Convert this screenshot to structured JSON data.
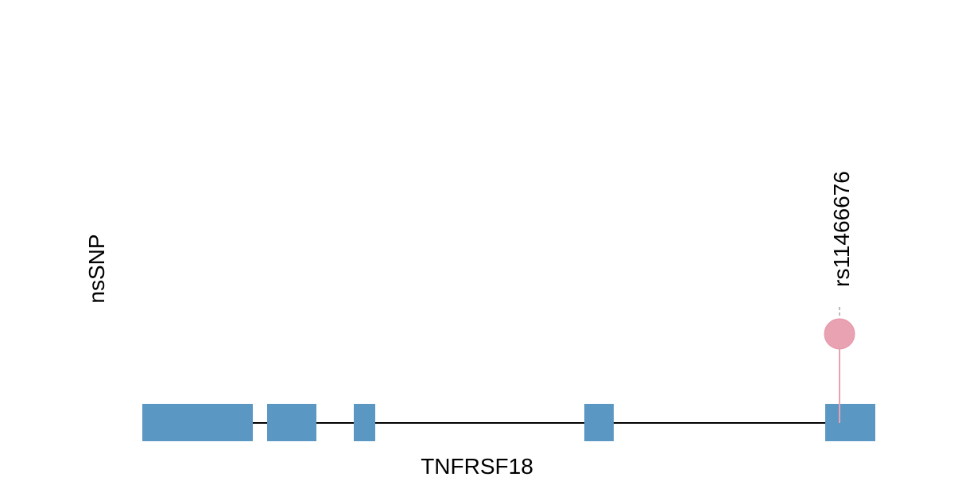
{
  "track_label": "nsSNP",
  "gene": {
    "name": "TNFRSF18",
    "exon_count": 5,
    "color": "#5b97c3"
  },
  "snps": [
    {
      "id": "rs11466676",
      "color": "#e8a2b1"
    }
  ]
}
